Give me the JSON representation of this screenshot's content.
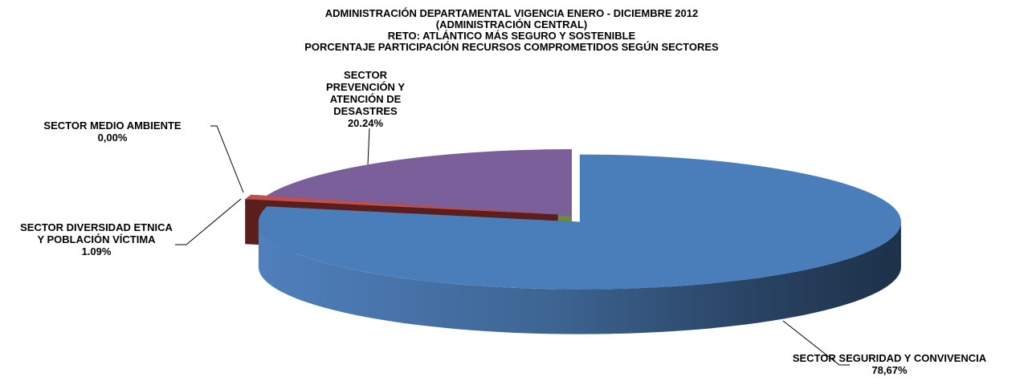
{
  "chart_data": {
    "type": "pie3d",
    "title": [
      "ADMINISTRACIÓN DEPARTAMENTAL VIGENCIA ENERO -  DICIEMBRE 2012",
      "(ADMINISTRACIÓN CENTRAL)",
      "RETO: ATLÁNTICO  MÁS SEGURO Y SOSTENIBLE",
      "PORCENTAJE PARTICIPACIÓN RECURSOS COMPROMETIDOS SEGÚN SECTORES"
    ],
    "categories": [
      "SECTOR SEGURIDAD Y CONVIVENCIA",
      "SECTOR DIVERSIDAD ETNICA Y POBLACIÓN VÍCTIMA",
      "SECTOR MEDIO AMBIENTE",
      "SECTOR PREVENCIÓN Y ATENCIÓN DE DESASTRES"
    ],
    "values": [
      78.67,
      1.09,
      0,
      20.24
    ],
    "value_labels": [
      "78,67%",
      "1.09%",
      "0,00%",
      "20.24%"
    ],
    "colors": [
      "#4a7ebb",
      "#c0504d",
      "#9bbb59",
      "#7b5f9b"
    ]
  }
}
